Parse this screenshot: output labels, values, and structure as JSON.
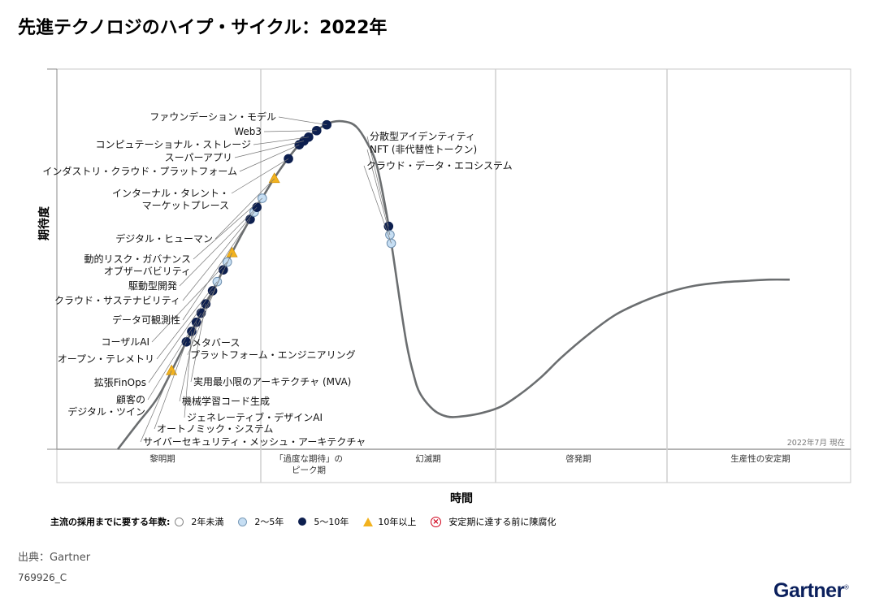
{
  "title": "先進テクノロジのハイプ・サイクル：2022年",
  "chart_data": {
    "type": "line",
    "title": "先進テクノロジのハイプ・サイクル：2022年",
    "xlabel": "時間",
    "ylabel": "期待度",
    "as_of": "2022年7月 現在",
    "phases": [
      "黎明期",
      "「過度な期待」の\nピーク期",
      "幻滅期",
      "啓発期",
      "生産性の安定期"
    ],
    "legend_title": "主流の採用までに要する年数:",
    "legend": [
      {
        "label": "2年未満",
        "marker": "circle-white",
        "color": "#ffffff"
      },
      {
        "label": "2〜5年",
        "marker": "circle-light",
        "color": "#c6def3"
      },
      {
        "label": "5〜10年",
        "marker": "circle-dark",
        "color": "#0d1f4f"
      },
      {
        "label": "10年以上",
        "marker": "triangle",
        "color": "#f2b21e"
      },
      {
        "label": "安定期に達する前に陳腐化",
        "marker": "x-circle",
        "color": "#d0021b"
      }
    ],
    "series": [
      {
        "label": "サイバーセキュリティ・メッシュ・アーキテクチャ",
        "t": 0.08,
        "marker": "triangle"
      },
      {
        "label": "オートノミック・システム",
        "t": 0.102,
        "marker": "circle-dark"
      },
      {
        "label": "ジェネレーティブ・デザインAI",
        "t": 0.11,
        "marker": "circle-dark"
      },
      {
        "label": "機械学習コード生成",
        "t": 0.117,
        "marker": "circle-dark"
      },
      {
        "label": "顧客のデジタル・ツイン",
        "t": 0.124,
        "marker": "circle-dark"
      },
      {
        "label": "実用最小限のアーキテクチャ (MVA)",
        "t": 0.131,
        "marker": "circle-dark"
      },
      {
        "label": "拡張FinOps",
        "t": 0.141,
        "marker": "circle-dark"
      },
      {
        "label": "オープン・テレメトリ",
        "t": 0.148,
        "marker": "circle-light"
      },
      {
        "label": "プラットフォーム・エンジニアリング",
        "t": 0.157,
        "marker": "circle-dark"
      },
      {
        "label": "コーザルAI",
        "t": 0.163,
        "marker": "circle-light"
      },
      {
        "label": "メタバース",
        "t": 0.17,
        "marker": "triangle"
      },
      {
        "label": "データ可観測性",
        "t": 0.197,
        "marker": "circle-dark"
      },
      {
        "label": "クラウド・サステナビリティ",
        "t": 0.203,
        "marker": "circle-light"
      },
      {
        "label": "駆動型開発",
        "t": 0.207,
        "marker": "circle-dark"
      },
      {
        "label": "動的リスク・ガバナンス オブザーバビリティ",
        "t": 0.215,
        "marker": "circle-light"
      },
      {
        "label": "デジタル・ヒューマン",
        "t": 0.233,
        "marker": "triangle"
      },
      {
        "label": "インターナル・タレント・マーケットプレース",
        "t": 0.254,
        "marker": "circle-dark"
      },
      {
        "label": "インダストリ・クラウド・プラットフォーム",
        "t": 0.27,
        "marker": "circle-dark"
      },
      {
        "label": "スーパーアプリ",
        "t": 0.277,
        "marker": "circle-dark"
      },
      {
        "label": "コンピュテーショナル・ストレージ",
        "t": 0.284,
        "marker": "circle-dark"
      },
      {
        "label": "Web3",
        "t": 0.296,
        "marker": "circle-dark"
      },
      {
        "label": "ファウンデーション・モデル",
        "t": 0.311,
        "marker": "circle-dark"
      },
      {
        "label": "分散型アイデンティティ",
        "t": 0.403,
        "marker": "circle-dark"
      },
      {
        "label": "NFT (非代替性トークン)",
        "t": 0.405,
        "marker": "circle-light"
      },
      {
        "label": "クラウド・データ・エコシステム",
        "t": 0.407,
        "marker": "circle-light"
      }
    ]
  },
  "source": "出典：Gartner",
  "doc_id": "769926_C",
  "logo": "Gartner",
  "logo_mark": "®"
}
